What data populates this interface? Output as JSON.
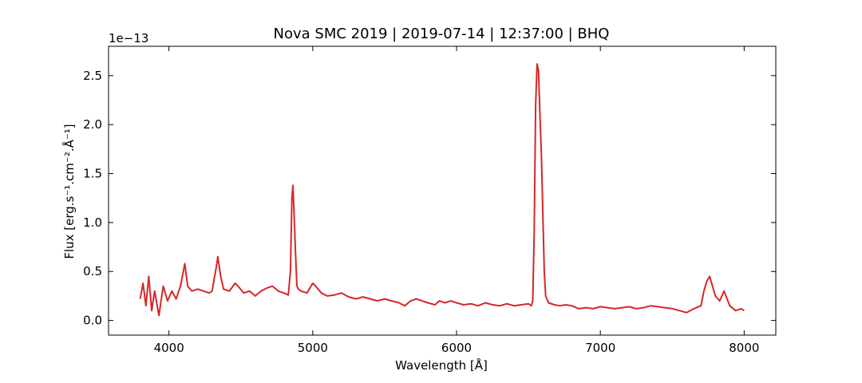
{
  "chart_data": {
    "type": "line",
    "title": "Nova SMC 2019 | 2019-07-14 | 12:37:00 | BHQ",
    "xlabel": "Wavelength [Å]",
    "ylabel": "Flux [erg.s⁻¹.cm⁻².Å⁻¹]",
    "y_offset_label": "1e−13",
    "xlim": [
      3580,
      8220
    ],
    "ylim": [
      -0.15,
      2.8
    ],
    "x_ticks": [
      4000,
      5000,
      6000,
      7000,
      8000
    ],
    "x_tick_labels": [
      "4000",
      "5000",
      "6000",
      "7000",
      "8000"
    ],
    "y_ticks": [
      0.0,
      0.5,
      1.0,
      1.5,
      2.0,
      2.5
    ],
    "y_tick_labels": [
      "0.0",
      "0.5",
      "1.0",
      "1.5",
      "2.0",
      "2.5"
    ],
    "grid": false,
    "series": [
      {
        "color": "#d62728",
        "x": [
          3800,
          3820,
          3840,
          3860,
          3880,
          3900,
          3930,
          3960,
          3990,
          4020,
          4050,
          4080,
          4100,
          4110,
          4130,
          4160,
          4200,
          4240,
          4280,
          4300,
          4330,
          4340,
          4360,
          4380,
          4420,
          4460,
          4480,
          4520,
          4560,
          4600,
          4640,
          4680,
          4720,
          4760,
          4800,
          4830,
          4845,
          4855,
          4862,
          4870,
          4880,
          4890,
          4900,
          4920,
          4960,
          5000,
          5020,
          5060,
          5100,
          5150,
          5200,
          5250,
          5300,
          5350,
          5400,
          5450,
          5500,
          5550,
          5600,
          5640,
          5680,
          5720,
          5760,
          5800,
          5850,
          5880,
          5920,
          5960,
          6000,
          6050,
          6100,
          6150,
          6200,
          6250,
          6300,
          6350,
          6400,
          6450,
          6500,
          6520,
          6530,
          6540,
          6550,
          6560,
          6570,
          6580,
          6590,
          6600,
          6610,
          6620,
          6640,
          6680,
          6720,
          6760,
          6800,
          6850,
          6900,
          6950,
          7000,
          7050,
          7100,
          7150,
          7200,
          7250,
          7300,
          7350,
          7400,
          7450,
          7500,
          7550,
          7600,
          7650,
          7700,
          7720,
          7740,
          7760,
          7780,
          7800,
          7830,
          7860,
          7900,
          7940,
          7980,
          8000
        ],
        "y": [
          0.22,
          0.38,
          0.15,
          0.45,
          0.1,
          0.3,
          0.05,
          0.35,
          0.2,
          0.3,
          0.22,
          0.35,
          0.5,
          0.58,
          0.35,
          0.3,
          0.32,
          0.3,
          0.28,
          0.3,
          0.55,
          0.65,
          0.45,
          0.32,
          0.3,
          0.38,
          0.35,
          0.28,
          0.3,
          0.25,
          0.3,
          0.33,
          0.35,
          0.3,
          0.28,
          0.26,
          0.5,
          1.25,
          1.38,
          1.1,
          0.7,
          0.35,
          0.32,
          0.3,
          0.28,
          0.38,
          0.35,
          0.28,
          0.25,
          0.26,
          0.28,
          0.24,
          0.22,
          0.24,
          0.22,
          0.2,
          0.22,
          0.2,
          0.18,
          0.15,
          0.2,
          0.22,
          0.2,
          0.18,
          0.16,
          0.2,
          0.18,
          0.2,
          0.18,
          0.16,
          0.17,
          0.15,
          0.18,
          0.16,
          0.15,
          0.17,
          0.15,
          0.16,
          0.17,
          0.15,
          0.2,
          0.9,
          2.2,
          2.62,
          2.55,
          2.1,
          1.7,
          1.1,
          0.5,
          0.25,
          0.18,
          0.16,
          0.15,
          0.16,
          0.15,
          0.12,
          0.13,
          0.12,
          0.14,
          0.13,
          0.12,
          0.13,
          0.14,
          0.12,
          0.13,
          0.15,
          0.14,
          0.13,
          0.12,
          0.1,
          0.08,
          0.12,
          0.15,
          0.3,
          0.4,
          0.45,
          0.35,
          0.25,
          0.2,
          0.3,
          0.15,
          0.1,
          0.12,
          0.1
        ]
      }
    ]
  }
}
